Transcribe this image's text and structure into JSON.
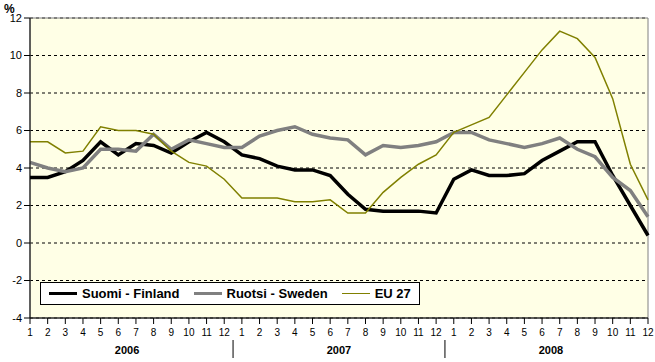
{
  "chart_data": {
    "type": "line",
    "ylabel": "%",
    "categories": [
      "1",
      "2",
      "3",
      "4",
      "5",
      "6",
      "7",
      "8",
      "9",
      "10",
      "11",
      "12",
      "1",
      "2",
      "3",
      "4",
      "5",
      "6",
      "7",
      "8",
      "9",
      "10",
      "11",
      "12",
      "1",
      "2",
      "3",
      "4",
      "5",
      "6",
      "7",
      "8",
      "9",
      "10",
      "11",
      "12"
    ],
    "groups": [
      "2006",
      "2007",
      "2008"
    ],
    "ylim": [
      -4,
      12
    ],
    "yticks": [
      -4,
      -2,
      0,
      2,
      4,
      6,
      8,
      10,
      12
    ],
    "grid": true,
    "legend": "lower left",
    "series": [
      {
        "name": "Suomi - Finland",
        "color": "#000000",
        "values": [
          3.5,
          3.5,
          3.8,
          4.4,
          5.4,
          4.7,
          5.3,
          5.2,
          4.8,
          5.4,
          5.9,
          5.4,
          4.7,
          4.5,
          4.1,
          3.9,
          3.9,
          3.6,
          2.6,
          1.8,
          1.7,
          1.7,
          1.7,
          1.6,
          3.4,
          3.9,
          3.6,
          3.6,
          3.7,
          4.4,
          4.9,
          5.4,
          5.4,
          3.6,
          2.0,
          0.4
        ]
      },
      {
        "name": "Ruotsi - Sweden",
        "color": "#808080",
        "values": [
          4.3,
          4.0,
          3.8,
          4.0,
          5.0,
          5.0,
          4.9,
          5.8,
          5.0,
          5.5,
          5.3,
          5.1,
          5.1,
          5.7,
          6.0,
          6.2,
          5.8,
          5.6,
          5.5,
          4.7,
          5.2,
          5.1,
          5.2,
          5.4,
          5.9,
          5.9,
          5.5,
          5.3,
          5.1,
          5.3,
          5.6,
          5.0,
          4.6,
          3.5,
          2.8,
          1.4
        ]
      },
      {
        "name": "EU 27",
        "color": "#808000",
        "values": [
          5.4,
          5.4,
          4.8,
          4.9,
          6.2,
          6.0,
          6.0,
          5.8,
          4.9,
          4.3,
          4.1,
          3.4,
          2.4,
          2.4,
          2.4,
          2.2,
          2.2,
          2.3,
          1.6,
          1.6,
          2.7,
          3.5,
          4.2,
          4.7,
          5.9,
          6.3,
          6.7,
          7.9,
          9.1,
          10.3,
          11.3,
          10.9,
          9.9,
          7.7,
          4.2,
          2.3
        ]
      }
    ]
  }
}
